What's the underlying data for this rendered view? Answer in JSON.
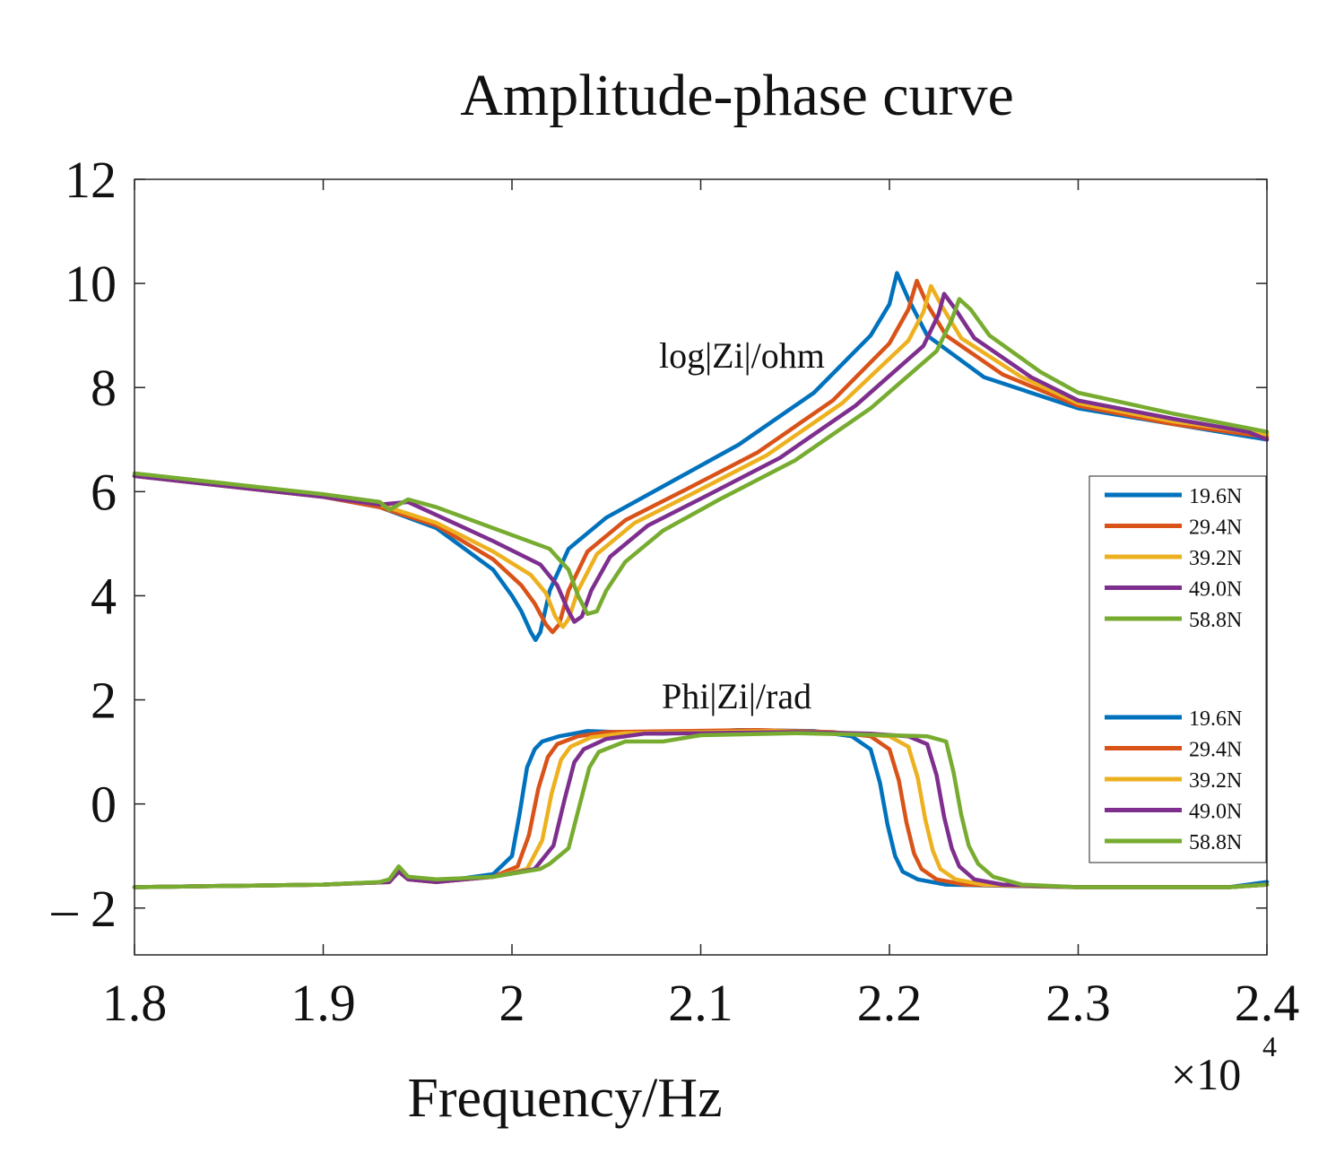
{
  "chart_data": {
    "type": "line",
    "title": "Amplitude-phase curve",
    "xlabel": "Frequency/Hz",
    "ylabel": "",
    "x_multiplier_label": "×10",
    "x_multiplier_exponent": "4",
    "xlim": [
      1.8,
      2.4
    ],
    "ylim": [
      -2.9,
      12
    ],
    "xticks": [
      1.8,
      1.9,
      2.0,
      2.1,
      2.2,
      2.3,
      2.4
    ],
    "xtick_labels": [
      "1.8",
      "1.9",
      "2",
      "2.1",
      "2.2",
      "2.3",
      "2.4"
    ],
    "yticks": [
      -2,
      0,
      2,
      4,
      6,
      8,
      10,
      12
    ],
    "ytick_labels": [
      "– 2",
      "0",
      "2",
      "4",
      "6",
      "8",
      "10",
      "12"
    ],
    "grid": false,
    "annotations": [
      {
        "text": "log|Zi|/ohm",
        "x": 2.133,
        "y": 8.7
      },
      {
        "text": "Phi|Zi|/rad",
        "x": 2.133,
        "y": 2.5
      }
    ],
    "legend_groups": [
      {
        "name": "log|Zi|/ohm",
        "entries": [
          "19.6N",
          "29.4N",
          "39.2N",
          "49.0N",
          "58.8N"
        ]
      },
      {
        "name": "Phi|Zi|/rad",
        "entries": [
          "19.6N",
          "29.4N",
          "39.2N",
          "49.0N",
          "58.8N"
        ]
      }
    ],
    "series": [
      {
        "name": "19.6N",
        "group": "amplitude",
        "color": "#0072BD",
        "x": [
          1.8,
          1.85,
          1.9,
          1.93,
          1.96,
          1.99,
          2.0,
          2.005,
          2.01,
          2.0125,
          2.015,
          2.02,
          2.03,
          2.05,
          2.08,
          2.12,
          2.16,
          2.19,
          2.2,
          2.204,
          2.21,
          2.22,
          2.25,
          2.3,
          2.35,
          2.4
        ],
        "y": [
          6.3,
          6.1,
          5.9,
          5.7,
          5.3,
          4.5,
          4.0,
          3.7,
          3.3,
          3.15,
          3.3,
          4.1,
          4.9,
          5.5,
          6.1,
          6.9,
          7.9,
          9.0,
          9.6,
          10.2,
          9.7,
          9.0,
          8.2,
          7.6,
          7.3,
          7.0
        ]
      },
      {
        "name": "29.4N",
        "group": "amplitude",
        "color": "#D95319",
        "x": [
          1.8,
          1.85,
          1.9,
          1.93,
          1.96,
          1.99,
          2.005,
          2.012,
          2.018,
          2.0215,
          2.025,
          2.03,
          2.04,
          2.06,
          2.09,
          2.13,
          2.17,
          2.2,
          2.21,
          2.2145,
          2.22,
          2.23,
          2.26,
          2.3,
          2.35,
          2.4
        ],
        "y": [
          6.3,
          6.1,
          5.9,
          5.7,
          5.35,
          4.7,
          4.2,
          3.85,
          3.45,
          3.3,
          3.45,
          4.1,
          4.85,
          5.45,
          6.0,
          6.75,
          7.75,
          8.85,
          9.5,
          10.05,
          9.6,
          9.0,
          8.25,
          7.65,
          7.3,
          7.05
        ]
      },
      {
        "name": "39.2N",
        "group": "amplitude",
        "color": "#EDB120",
        "x": [
          1.8,
          1.85,
          1.9,
          1.93,
          1.96,
          1.99,
          2.01,
          2.018,
          2.023,
          2.027,
          2.03,
          2.035,
          2.045,
          2.065,
          2.095,
          2.135,
          2.175,
          2.21,
          2.218,
          2.222,
          2.228,
          2.238,
          2.27,
          2.3,
          2.35,
          2.4
        ],
        "y": [
          6.3,
          6.1,
          5.9,
          5.75,
          5.4,
          4.85,
          4.4,
          4.05,
          3.6,
          3.4,
          3.55,
          4.1,
          4.8,
          5.4,
          5.95,
          6.7,
          7.7,
          8.9,
          9.45,
          9.95,
          9.55,
          8.95,
          8.2,
          7.7,
          7.35,
          7.1
        ]
      },
      {
        "name": "49.0N",
        "group": "amplitude",
        "color": "#7E2F8E",
        "x": [
          1.8,
          1.85,
          1.9,
          1.93,
          1.945,
          1.96,
          1.99,
          2.015,
          2.024,
          2.03,
          2.033,
          2.037,
          2.042,
          2.052,
          2.072,
          2.102,
          2.142,
          2.182,
          2.218,
          2.226,
          2.229,
          2.235,
          2.245,
          2.275,
          2.3,
          2.35,
          2.39,
          2.4
        ],
        "y": [
          6.3,
          6.1,
          5.9,
          5.75,
          5.8,
          5.55,
          5.05,
          4.6,
          4.2,
          3.7,
          3.5,
          3.6,
          4.1,
          4.75,
          5.35,
          5.9,
          6.65,
          7.65,
          8.8,
          9.4,
          9.8,
          9.5,
          8.95,
          8.2,
          7.75,
          7.4,
          7.15,
          7.0
        ]
      },
      {
        "name": "58.8N",
        "group": "amplitude",
        "color": "#77AC30",
        "x": [
          1.8,
          1.85,
          1.9,
          1.93,
          1.935,
          1.945,
          1.96,
          1.99,
          2.02,
          2.03,
          2.035,
          2.04,
          2.045,
          2.05,
          2.06,
          2.08,
          2.11,
          2.15,
          2.19,
          2.225,
          2.233,
          2.237,
          2.243,
          2.253,
          2.28,
          2.3,
          2.35,
          2.4
        ],
        "y": [
          6.35,
          6.15,
          5.95,
          5.8,
          5.65,
          5.85,
          5.7,
          5.3,
          4.9,
          4.5,
          4.0,
          3.65,
          3.7,
          4.1,
          4.65,
          5.25,
          5.85,
          6.6,
          7.6,
          8.7,
          9.3,
          9.7,
          9.5,
          9.0,
          8.3,
          7.9,
          7.5,
          7.15
        ]
      },
      {
        "name": "19.6N",
        "group": "phase",
        "color": "#0072BD",
        "x": [
          1.8,
          1.9,
          1.935,
          1.94,
          1.945,
          1.96,
          1.99,
          2.0,
          2.004,
          2.008,
          2.012,
          2.016,
          2.025,
          2.04,
          2.08,
          2.12,
          2.16,
          2.18,
          2.19,
          2.195,
          2.199,
          2.203,
          2.207,
          2.215,
          2.23,
          2.3,
          2.38,
          2.39,
          2.4
        ],
        "y": [
          -1.6,
          -1.55,
          -1.5,
          -1.3,
          -1.45,
          -1.5,
          -1.35,
          -1.0,
          -0.2,
          0.7,
          1.05,
          1.2,
          1.3,
          1.4,
          1.35,
          1.42,
          1.4,
          1.3,
          1.05,
          0.4,
          -0.4,
          -1.0,
          -1.3,
          -1.45,
          -1.55,
          -1.6,
          -1.6,
          -1.55,
          -1.5
        ]
      },
      {
        "name": "29.4N",
        "group": "phase",
        "color": "#D95319",
        "x": [
          1.8,
          1.9,
          1.935,
          1.94,
          1.945,
          1.96,
          1.99,
          2.003,
          2.009,
          2.014,
          2.019,
          2.024,
          2.035,
          2.05,
          2.09,
          2.13,
          2.17,
          2.19,
          2.2,
          2.205,
          2.209,
          2.213,
          2.217,
          2.225,
          2.24,
          2.3,
          2.38,
          2.4
        ],
        "y": [
          -1.6,
          -1.55,
          -1.5,
          -1.3,
          -1.45,
          -1.5,
          -1.4,
          -1.2,
          -0.6,
          0.3,
          0.9,
          1.15,
          1.3,
          1.38,
          1.4,
          1.42,
          1.38,
          1.3,
          1.05,
          0.45,
          -0.35,
          -0.95,
          -1.25,
          -1.45,
          -1.55,
          -1.6,
          -1.6,
          -1.55
        ]
      },
      {
        "name": "39.2N",
        "group": "phase",
        "color": "#EDB120",
        "x": [
          1.8,
          1.9,
          1.935,
          1.94,
          1.945,
          1.96,
          1.99,
          2.008,
          2.016,
          2.021,
          2.026,
          2.031,
          2.042,
          2.06,
          2.1,
          2.14,
          2.18,
          2.2,
          2.21,
          2.215,
          2.219,
          2.223,
          2.227,
          2.235,
          2.25,
          2.3,
          2.38,
          2.4
        ],
        "y": [
          -1.6,
          -1.55,
          -1.5,
          -1.3,
          -1.45,
          -1.5,
          -1.4,
          -1.25,
          -0.7,
          0.2,
          0.85,
          1.1,
          1.28,
          1.36,
          1.38,
          1.4,
          1.36,
          1.3,
          1.1,
          0.5,
          -0.3,
          -0.9,
          -1.25,
          -1.45,
          -1.55,
          -1.6,
          -1.6,
          -1.55
        ]
      },
      {
        "name": "49.0N",
        "group": "phase",
        "color": "#7E2F8E",
        "x": [
          1.8,
          1.9,
          1.935,
          1.94,
          1.945,
          1.96,
          1.99,
          2.012,
          2.022,
          2.028,
          2.033,
          2.038,
          2.05,
          2.07,
          2.1,
          2.15,
          2.19,
          2.21,
          2.22,
          2.225,
          2.229,
          2.233,
          2.237,
          2.245,
          2.26,
          2.3,
          2.38,
          2.4
        ],
        "y": [
          -1.6,
          -1.55,
          -1.5,
          -1.3,
          -1.45,
          -1.5,
          -1.4,
          -1.25,
          -0.8,
          0.1,
          0.8,
          1.05,
          1.25,
          1.35,
          1.36,
          1.38,
          1.35,
          1.3,
          1.15,
          0.55,
          -0.25,
          -0.85,
          -1.2,
          -1.45,
          -1.55,
          -1.6,
          -1.6,
          -1.55
        ]
      },
      {
        "name": "58.8N",
        "group": "phase",
        "color": "#77AC30",
        "x": [
          1.8,
          1.9,
          1.93,
          1.935,
          1.94,
          1.945,
          1.96,
          1.99,
          2.015,
          2.02,
          2.03,
          2.036,
          2.041,
          2.046,
          2.06,
          2.08,
          2.1,
          2.15,
          2.2,
          2.22,
          2.23,
          2.234,
          2.238,
          2.242,
          2.247,
          2.255,
          2.27,
          2.3,
          2.38,
          2.4
        ],
        "y": [
          -1.6,
          -1.55,
          -1.5,
          -1.45,
          -1.2,
          -1.4,
          -1.45,
          -1.4,
          -1.25,
          -1.15,
          -0.85,
          0.0,
          0.7,
          1.0,
          1.2,
          1.2,
          1.32,
          1.36,
          1.32,
          1.3,
          1.2,
          0.6,
          -0.2,
          -0.8,
          -1.15,
          -1.4,
          -1.55,
          -1.6,
          -1.6,
          -1.55
        ]
      }
    ]
  }
}
